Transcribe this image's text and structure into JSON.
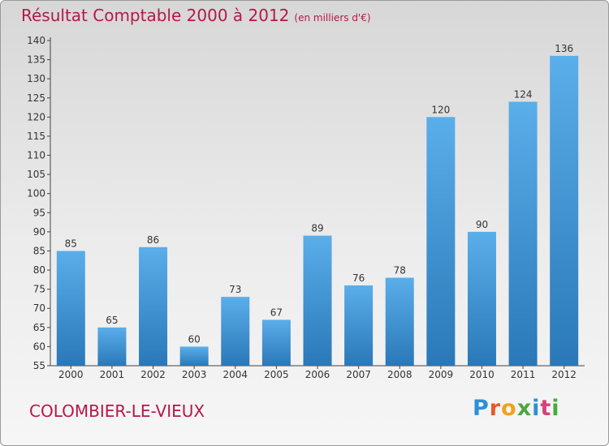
{
  "header": {
    "title": "Résultat Comptable 2000 à 2012",
    "unit": "(en milliers d'€)"
  },
  "footer": {
    "commune": "COLOMBIER-LE-VIEUX",
    "logo": "Proxiti"
  },
  "colors": {
    "title": "#b5184a",
    "bar_light": "#5aaeea",
    "bar_dark": "#2a78b8"
  },
  "chart_data": {
    "type": "bar",
    "categories": [
      "2000",
      "2001",
      "2002",
      "2003",
      "2004",
      "2005",
      "2006",
      "2007",
      "2008",
      "2009",
      "2010",
      "2011",
      "2012"
    ],
    "values": [
      85,
      65,
      86,
      60,
      73,
      67,
      89,
      76,
      78,
      120,
      90,
      124,
      136
    ],
    "title": "Résultat Comptable 2000 à 2012",
    "ylim": [
      55,
      140
    ],
    "yticks": [
      55,
      60,
      65,
      70,
      75,
      80,
      85,
      90,
      95,
      100,
      105,
      110,
      115,
      120,
      125,
      130,
      135,
      140
    ],
    "grid": false,
    "data_labels": true
  }
}
